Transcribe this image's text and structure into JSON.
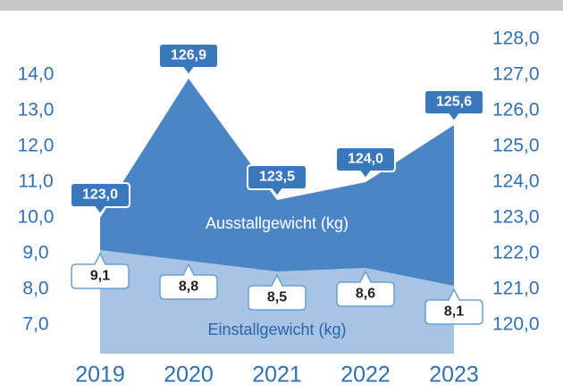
{
  "chart_data": {
    "type": "area",
    "categories": [
      "2019",
      "2020",
      "2021",
      "2022",
      "2023"
    ],
    "series": [
      {
        "name": "Ausstallgewicht (kg)",
        "color": "#4a86c6",
        "axis": "y2",
        "values": [
          123.0,
          126.9,
          123.5,
          124.0,
          125.6
        ],
        "value_labels": [
          "123,0",
          "126,9",
          "123,5",
          "124,0",
          "125,6"
        ]
      },
      {
        "name": "Einstallgewicht (kg)",
        "color": "#a8c4e4",
        "values": [
          9.1,
          8.8,
          8.5,
          8.6,
          8.1
        ],
        "value_labels": [
          "9,1",
          "8,8",
          "8,5",
          "8,6",
          "8,1"
        ]
      }
    ],
    "ylim": [
      6.2,
      15.2
    ],
    "yticks": [
      {
        "value": 7,
        "label": "7,0"
      },
      {
        "value": 8,
        "label": "8,0"
      },
      {
        "value": 9,
        "label": "9,0"
      },
      {
        "value": 10,
        "label": "10,0"
      },
      {
        "value": 11,
        "label": "11,0"
      },
      {
        "value": 12,
        "label": "12,0"
      },
      {
        "value": 13,
        "label": "13,0"
      },
      {
        "value": 14,
        "label": "14,0"
      }
    ],
    "y2lim": [
      119.2,
      128.2
    ],
    "y2ticks": [
      {
        "value": 120,
        "label": "120,0"
      },
      {
        "value": 121,
        "label": "121,0"
      },
      {
        "value": 122,
        "label": "122,0"
      },
      {
        "value": 123,
        "label": "123,0"
      },
      {
        "value": 124,
        "label": "124,0"
      },
      {
        "value": 125,
        "label": "125,0"
      },
      {
        "value": 126,
        "label": "126,0"
      },
      {
        "value": 127,
        "label": "127,0"
      },
      {
        "value": 128,
        "label": "128,0"
      }
    ]
  }
}
